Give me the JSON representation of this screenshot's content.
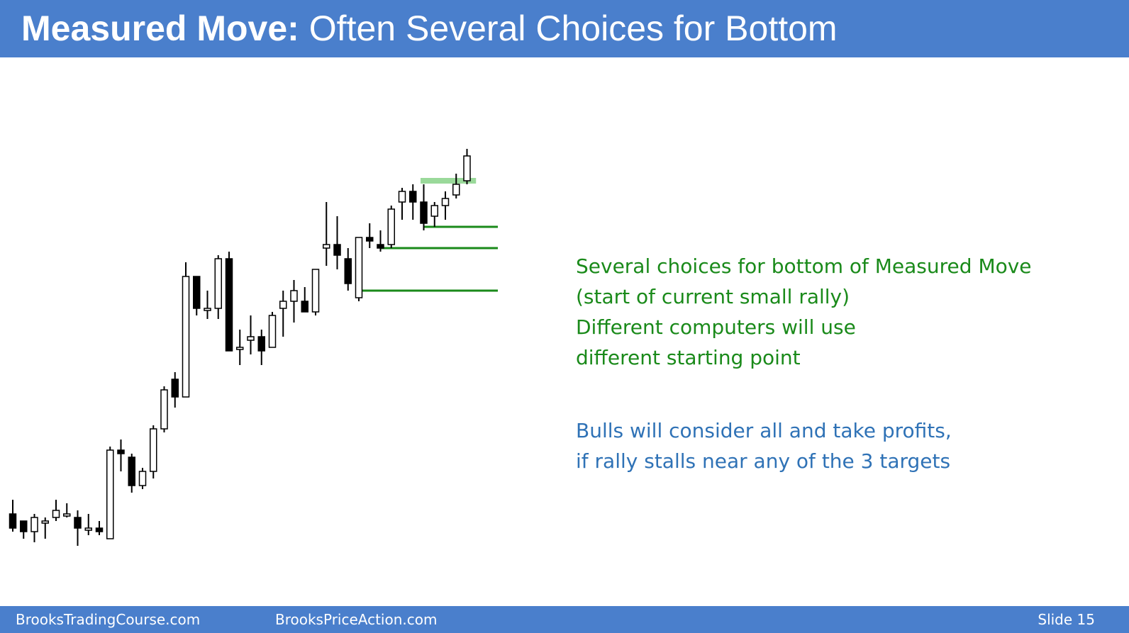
{
  "header": {
    "title_bold": "Measured Move:",
    "title_rest": "Often Several Choices for Bottom",
    "bg_color": "#4a7fcc"
  },
  "notes": {
    "green_lines": [
      "Several choices for bottom of Measured Move",
      "(start of current small rally)",
      "Different computers will use",
      "different starting point"
    ],
    "blue_lines": [
      "Bulls will consider all and take profits,",
      "if rally stalls near any of the 3 targets"
    ],
    "green_color": "#1a8a1a",
    "blue_color": "#2f72b6"
  },
  "footer": {
    "left": "BrooksTradingCourse.com",
    "middle": "BrooksPriceAction.com",
    "slide": "Slide  15"
  },
  "chart_data": {
    "type": "candlestick",
    "ylim": [
      0,
      100
    ],
    "bar_count": 43,
    "candles": [
      {
        "o": 10,
        "h": 14,
        "l": 5,
        "c": 6
      },
      {
        "o": 8,
        "h": 8,
        "l": 3,
        "c": 5
      },
      {
        "o": 5,
        "h": 10,
        "l": 2,
        "c": 9
      },
      {
        "o": 8,
        "h": 9,
        "l": 3,
        "c": 8
      },
      {
        "o": 9,
        "h": 14,
        "l": 8,
        "c": 11
      },
      {
        "o": 10,
        "h": 13,
        "l": 9,
        "c": 10
      },
      {
        "o": 9,
        "h": 11,
        "l": 1,
        "c": 6
      },
      {
        "o": 6,
        "h": 10,
        "l": 4,
        "c": 6
      },
      {
        "o": 6,
        "h": 8,
        "l": 4,
        "c": 5
      },
      {
        "o": 3,
        "h": 29,
        "l": 3,
        "c": 28
      },
      {
        "o": 28,
        "h": 31,
        "l": 22,
        "c": 27
      },
      {
        "o": 26,
        "h": 27,
        "l": 16,
        "c": 18
      },
      {
        "o": 18,
        "h": 23,
        "l": 17,
        "c": 22
      },
      {
        "o": 22,
        "h": 35,
        "l": 20,
        "c": 34
      },
      {
        "o": 34,
        "h": 46,
        "l": 33,
        "c": 45
      },
      {
        "o": 48,
        "h": 50,
        "l": 40,
        "c": 43
      },
      {
        "o": 43,
        "h": 81,
        "l": 43,
        "c": 77
      },
      {
        "o": 77,
        "h": 77,
        "l": 66,
        "c": 68
      },
      {
        "o": 68,
        "h": 73,
        "l": 65,
        "c": 68
      },
      {
        "o": 68,
        "h": 83,
        "l": 65,
        "c": 82
      },
      {
        "o": 82,
        "h": 84,
        "l": 56,
        "c": 56
      },
      {
        "o": 57,
        "h": 62,
        "l": 52,
        "c": 57
      },
      {
        "o": 59,
        "h": 66,
        "l": 55,
        "c": 60
      },
      {
        "o": 60,
        "h": 62,
        "l": 52,
        "c": 56
      },
      {
        "o": 57,
        "h": 67,
        "l": 57,
        "c": 66
      },
      {
        "o": 68,
        "h": 73,
        "l": 60,
        "c": 70
      },
      {
        "o": 70,
        "h": 76,
        "l": 64,
        "c": 73
      },
      {
        "o": 70,
        "h": 74,
        "l": 67,
        "c": 67
      },
      {
        "o": 67,
        "h": 79,
        "l": 66,
        "c": 79
      },
      {
        "o": 85,
        "h": 98,
        "l": 80,
        "c": 86
      },
      {
        "o": 86,
        "h": 94,
        "l": 79,
        "c": 83
      },
      {
        "o": 82,
        "h": 85,
        "l": 73,
        "c": 75
      },
      {
        "o": 71,
        "h": 88,
        "l": 70,
        "c": 88
      },
      {
        "o": 88,
        "h": 92,
        "l": 85,
        "c": 87
      },
      {
        "o": 86,
        "h": 90,
        "l": 84,
        "c": 85
      },
      {
        "o": 86,
        "h": 97,
        "l": 85,
        "c": 96
      },
      {
        "o": 98,
        "h": 102,
        "l": 93,
        "c": 101
      },
      {
        "o": 101,
        "h": 103,
        "l": 93,
        "c": 98
      },
      {
        "o": 98,
        "h": 103,
        "l": 90,
        "c": 92
      },
      {
        "o": 94,
        "h": 98,
        "l": 91,
        "c": 97
      },
      {
        "o": 97,
        "h": 101,
        "l": 93,
        "c": 99
      },
      {
        "o": 100,
        "h": 106,
        "l": 99,
        "c": 103
      },
      {
        "o": 104,
        "h": 113,
        "l": 103,
        "c": 111
      }
    ],
    "horizontal_lines": [
      {
        "level": 91,
        "color": "#1a8a1a",
        "start_bar": 38
      },
      {
        "level": 85,
        "color": "#1a8a1a",
        "start_bar": 34
      },
      {
        "level": 73,
        "color": "#1a8a1a",
        "start_bar": 32
      }
    ],
    "target_zone": {
      "level": 104,
      "color": "#9ad99a",
      "start_bar": 38,
      "end_bar": 43
    }
  }
}
